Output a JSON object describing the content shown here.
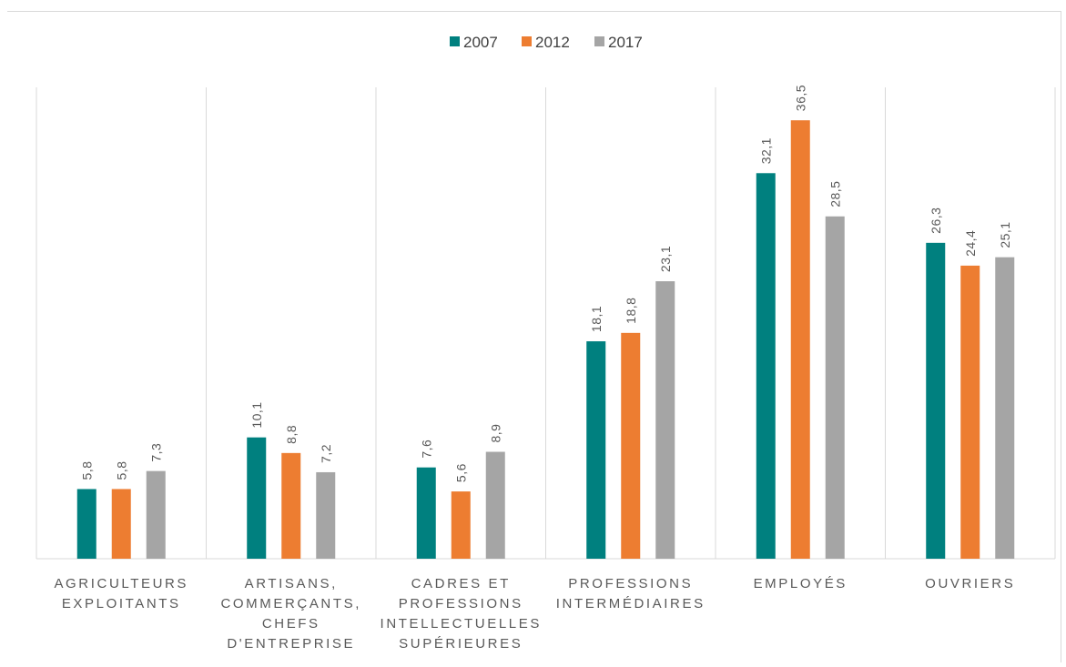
{
  "chart_data": {
    "type": "bar",
    "title": "",
    "xlabel": "",
    "ylabel": "",
    "ylim": [
      0,
      40
    ],
    "grid": false,
    "legend_position": "top-center",
    "categories": [
      [
        "AGRICULTEURS",
        "EXPLOITANTS"
      ],
      [
        "ARTISANS,",
        "COMMERÇANTS,",
        "CHEFS",
        "D'ENTREPRISE"
      ],
      [
        "CADRES ET",
        "PROFESSIONS",
        "INTELLECTUELLES",
        "SUPÉRIEURES"
      ],
      [
        "PROFESSIONS",
        "INTERMÉDIAIRES"
      ],
      [
        "EMPLOYÉS"
      ],
      [
        "OUVRIERS"
      ]
    ],
    "series": [
      {
        "name": "2007",
        "color": "#00807f",
        "values": [
          5.8,
          10.1,
          7.6,
          18.1,
          32.1,
          26.3
        ],
        "labels": [
          "5,8",
          "10,1",
          "7,6",
          "18,1",
          "32,1",
          "26,3"
        ]
      },
      {
        "name": "2012",
        "color": "#ed7d31",
        "values": [
          5.8,
          8.8,
          5.6,
          18.8,
          36.5,
          24.4
        ],
        "labels": [
          "5,8",
          "8,8",
          "5,6",
          "18,8",
          "36,5",
          "24,4"
        ]
      },
      {
        "name": "2017",
        "color": "#a5a5a5",
        "values": [
          7.3,
          7.2,
          8.9,
          23.1,
          28.5,
          25.1
        ],
        "labels": [
          "7,3",
          "7,2",
          "8,9",
          "23,1",
          "28,5",
          "25,1"
        ]
      }
    ]
  }
}
